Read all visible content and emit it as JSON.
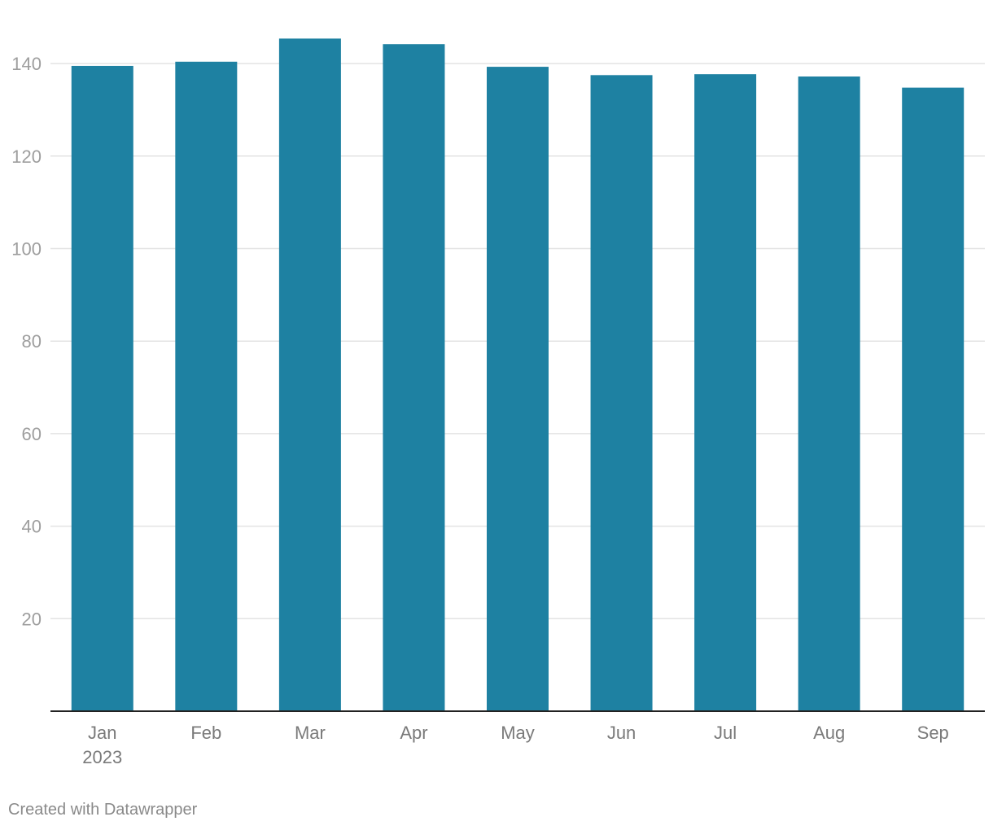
{
  "credit": "Created with Datawrapper",
  "colors": {
    "bar": "#1e81a2",
    "grid": "#e3e3e3",
    "baseline": "#222222",
    "tick_text": "#9e9e9e",
    "category_text": "#7a7a7a"
  },
  "chart_data": {
    "type": "bar",
    "title": "",
    "xlabel": "",
    "ylabel": "",
    "categories": [
      "Jan",
      "Feb",
      "Mar",
      "Apr",
      "May",
      "Jun",
      "Jul",
      "Aug",
      "Sep"
    ],
    "category_sublabels": [
      "2023",
      "",
      "",
      "",
      "",
      "",
      "",
      "",
      ""
    ],
    "values": [
      139.5,
      140.4,
      145.4,
      144.2,
      139.3,
      137.5,
      137.7,
      137.2,
      134.8
    ],
    "yticks": [
      20,
      40,
      60,
      80,
      100,
      120,
      140
    ],
    "ylim": [
      0,
      150
    ],
    "grid": true,
    "legend": "none"
  }
}
